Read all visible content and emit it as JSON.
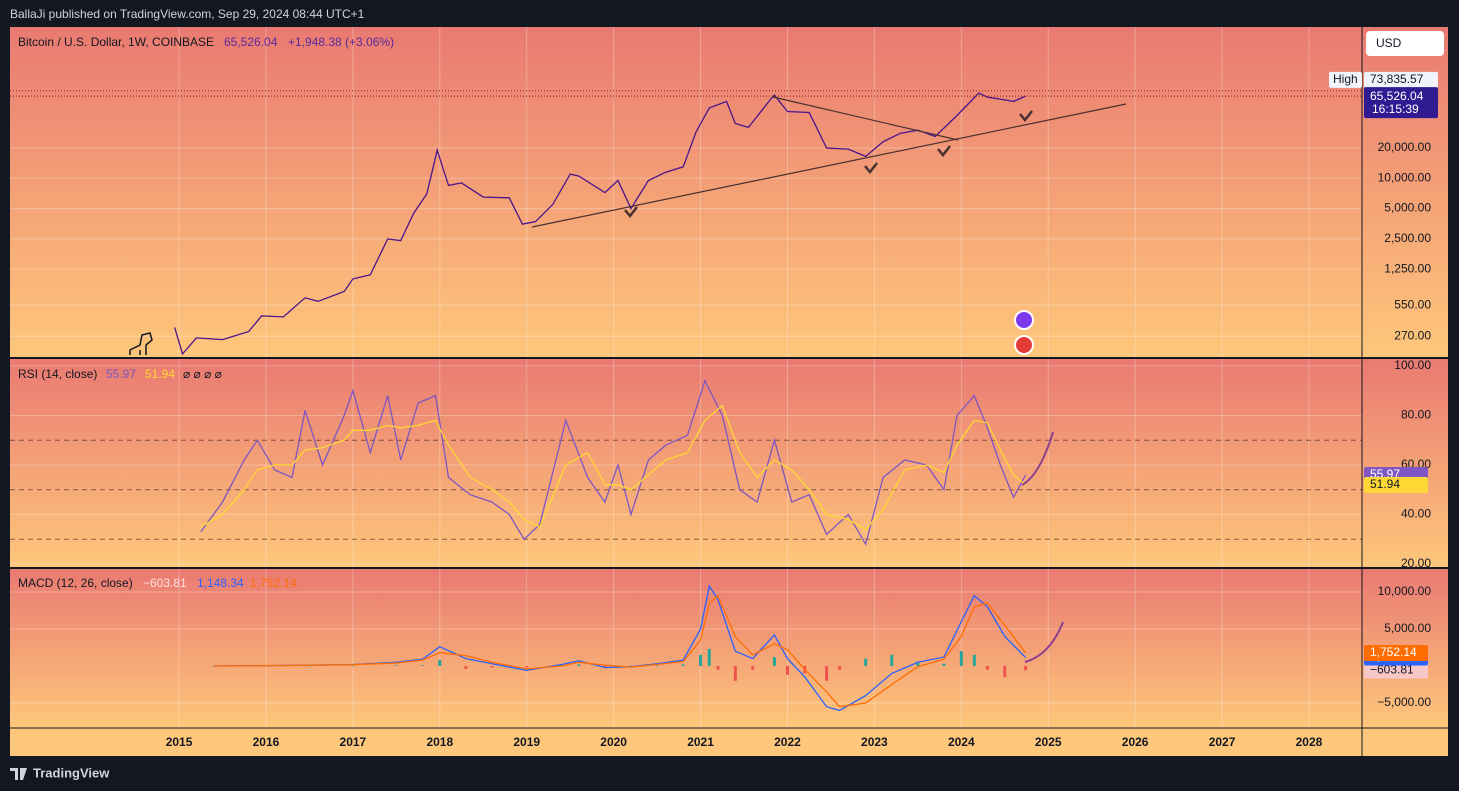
{
  "header": {
    "publisher": "BallaJi published on TradingView.com, Sep 29, 2024 08:44 UTC+1",
    "footer": "TradingView",
    "currency_button": "USD"
  },
  "chart_data": [
    {
      "type": "line",
      "title": "Bitcoin / U.S. Dollar, 1W, COINBASE",
      "change_label": "+1,948.38 (+3.06%)",
      "countdown": "16:15:39",
      "log_scale": true,
      "grid": true,
      "high": {
        "label": "High",
        "value": 73835.57,
        "value_label": "73,835.57"
      },
      "x": [
        2014.95,
        2015.04,
        2015.2,
        2015.5,
        2015.8,
        2015.95,
        2016.2,
        2016.45,
        2016.6,
        2016.9,
        2017.0,
        2017.2,
        2017.4,
        2017.55,
        2017.7,
        2017.85,
        2017.97,
        2018.1,
        2018.25,
        2018.5,
        2018.8,
        2018.95,
        2019.1,
        2019.3,
        2019.5,
        2019.6,
        2019.9,
        2020.05,
        2020.2,
        2020.4,
        2020.6,
        2020.8,
        2020.95,
        2021.1,
        2021.3,
        2021.4,
        2021.55,
        2021.8,
        2021.85,
        2022.0,
        2022.25,
        2022.45,
        2022.7,
        2022.9,
        2023.1,
        2023.3,
        2023.5,
        2023.7,
        2023.95,
        2024.2,
        2024.3,
        2024.5,
        2024.6,
        2024.74
      ],
      "series": [
        {
          "color": "#4a148c",
          "last_label": "65,526.04",
          "values": [
            330,
            180,
            260,
            250,
            300,
            430,
            420,
            650,
            600,
            750,
            1000,
            1100,
            2500,
            2400,
            4500,
            7000,
            19000,
            8500,
            9000,
            6500,
            6400,
            3500,
            3700,
            5500,
            11000,
            10500,
            7200,
            9500,
            5000,
            9500,
            11500,
            13000,
            29000,
            50000,
            58000,
            35000,
            32000,
            60000,
            67000,
            46000,
            45000,
            20000,
            19500,
            16500,
            23000,
            28000,
            30000,
            26000,
            42000,
            70000,
            64000,
            60000,
            58000,
            65526.04
          ]
        }
      ],
      "ylim": [
        164,
        318000
      ],
      "yticks": [
        {
          "value": 270,
          "label": "270.00"
        },
        {
          "value": 550,
          "label": "550.00"
        },
        {
          "value": 1250,
          "label": "1,250.00"
        },
        {
          "value": 2500,
          "label": "2,500.00"
        },
        {
          "value": 5000,
          "label": "5,000.00"
        },
        {
          "value": 10000,
          "label": "10,000.00"
        },
        {
          "value": 20000,
          "label": "20,000.00"
        }
      ]
    },
    {
      "type": "line",
      "title": "RSI (14, close)",
      "hidden_markers": "⌀ ⌀ ⌀ ⌀",
      "grid": true,
      "x": [
        2015.25,
        2015.5,
        2015.75,
        2015.9,
        2016.1,
        2016.3,
        2016.45,
        2016.65,
        2016.9,
        2017.0,
        2017.2,
        2017.4,
        2017.55,
        2017.75,
        2017.95,
        2018.1,
        2018.35,
        2018.6,
        2018.8,
        2018.97,
        2019.15,
        2019.45,
        2019.7,
        2019.9,
        2020.05,
        2020.2,
        2020.4,
        2020.6,
        2020.85,
        2021.05,
        2021.25,
        2021.45,
        2021.65,
        2021.85,
        2022.05,
        2022.25,
        2022.45,
        2022.7,
        2022.9,
        2023.1,
        2023.35,
        2023.6,
        2023.8,
        2023.95,
        2024.15,
        2024.3,
        2024.45,
        2024.6,
        2024.74
      ],
      "series": [
        {
          "color": "#7e57c2",
          "tag_text": "#ffffff",
          "values": [
            33,
            45,
            62,
            70,
            58,
            55,
            82,
            60,
            80,
            90,
            65,
            88,
            62,
            85,
            88,
            55,
            48,
            45,
            40,
            30,
            36,
            78,
            55,
            45,
            60,
            40,
            62,
            68,
            72,
            94,
            80,
            50,
            45,
            70,
            45,
            48,
            32,
            40,
            28,
            55,
            62,
            60,
            50,
            80,
            88,
            75,
            60,
            47,
            55.97
          ]
        },
        {
          "color": "#fdd835",
          "tag_text": "#131722",
          "values": [
            35,
            40,
            50,
            58,
            60,
            60,
            66,
            67,
            70,
            74,
            74,
            76,
            75,
            76,
            78,
            68,
            55,
            50,
            45,
            38,
            35,
            60,
            65,
            52,
            52,
            50,
            56,
            62,
            65,
            78,
            84,
            65,
            55,
            62,
            58,
            50,
            40,
            38,
            34,
            42,
            58,
            60,
            57,
            68,
            78,
            77,
            66,
            56,
            51.94
          ]
        }
      ],
      "bands": [
        70,
        50,
        30
      ],
      "ylim": [
        18.4,
        103.2
      ],
      "yticks": [
        {
          "value": 20,
          "label": "20.00"
        },
        {
          "value": 40,
          "label": "40.00"
        },
        {
          "value": 60,
          "label": "60.00"
        },
        {
          "value": 80,
          "label": "80.00"
        },
        {
          "value": 100,
          "label": "100.00"
        }
      ]
    },
    {
      "type": "line",
      "title": "MACD (12, 26, close)",
      "grid": true,
      "x": [
        2015.4,
        2016.0,
        2016.5,
        2017.0,
        2017.5,
        2017.8,
        2018.0,
        2018.3,
        2018.6,
        2019.0,
        2019.4,
        2019.6,
        2019.9,
        2020.2,
        2020.5,
        2020.8,
        2021.0,
        2021.1,
        2021.2,
        2021.4,
        2021.6,
        2021.85,
        2022.0,
        2022.2,
        2022.45,
        2022.6,
        2022.9,
        2023.2,
        2023.5,
        2023.8,
        2024.0,
        2024.15,
        2024.3,
        2024.5,
        2024.74
      ],
      "series": [
        {
          "type": "bar",
          "color_up": "#26a69a",
          "color_down": "#ef5350",
          "color": "#f8c8c8",
          "tag_text": "#131722",
          "last_label": "−603.81",
          "values": [
            0,
            10,
            10,
            20,
            100,
            100,
            800,
            -400,
            -200,
            -200,
            200,
            200,
            -300,
            50,
            100,
            200,
            1500,
            2300,
            -500,
            -2000,
            -500,
            1200,
            -1200,
            -1000,
            -2000,
            -500,
            1000,
            1500,
            600,
            300,
            2000,
            1500,
            -500,
            -1500,
            -603.81
          ]
        },
        {
          "color": "#2962ff",
          "tag_text": "#ffffff",
          "last_label": "1,148.34",
          "values": [
            0,
            50,
            100,
            200,
            500,
            900,
            2600,
            1000,
            300,
            -600,
            200,
            700,
            -200,
            -100,
            300,
            800,
            5000,
            10800,
            9000,
            2000,
            1000,
            4200,
            1000,
            -1500,
            -5500,
            -6000,
            -4000,
            -1000,
            500,
            1200,
            6000,
            9500,
            8000,
            4000,
            1148.34
          ]
        },
        {
          "color": "#ff6d00",
          "tag_text": "#ffffff",
          "last_label": "1,752.14",
          "values": [
            0,
            40,
            90,
            180,
            400,
            800,
            1800,
            1400,
            500,
            -400,
            0,
            500,
            100,
            -150,
            200,
            600,
            3500,
            8500,
            9500,
            4000,
            1500,
            3000,
            2200,
            -500,
            -3500,
            -5500,
            -5000,
            -2500,
            -100,
            900,
            4000,
            8000,
            8500,
            5500,
            1752.14
          ]
        }
      ],
      "ylim": [
        -8380,
        13240
      ],
      "yticks": [
        {
          "value": -5000,
          "label": "−5,000.00"
        },
        {
          "value": 5000,
          "label": "5,000.00"
        },
        {
          "value": 10000,
          "label": "10,000.00"
        }
      ],
      "xlim": [
        2013.055,
        2028.61
      ],
      "xticks": [
        2015,
        2016,
        2017,
        2018,
        2019,
        2020,
        2021,
        2022,
        2023,
        2024,
        2025,
        2026,
        2027,
        2028
      ]
    }
  ]
}
